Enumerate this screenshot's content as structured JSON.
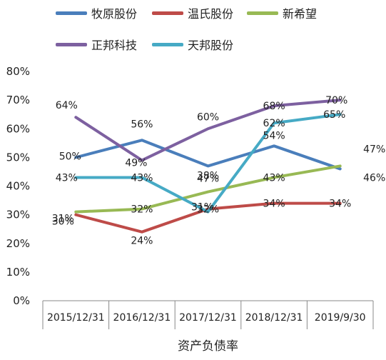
{
  "chart_data": {
    "type": "line",
    "xlabel": "资产负债率",
    "categories": [
      "2015/12/31",
      "2016/12/31",
      "2017/12/31",
      "2018/12/31",
      "2019/9/30"
    ],
    "ylim": [
      0,
      80
    ],
    "yticks": [
      "0%",
      "10%",
      "20%",
      "30%",
      "40%",
      "50%",
      "60%",
      "70%",
      "80%"
    ],
    "grid": false,
    "legend_position": "top",
    "series": [
      {
        "name": "牧原股份",
        "color": "#4a7ebb",
        "values": [
          50,
          56,
          47,
          54,
          46
        ],
        "labels": [
          "50%",
          "56%",
          "47%",
          "54%",
          "46%"
        ]
      },
      {
        "name": "温氏股份",
        "color": "#be4b48",
        "values": [
          30,
          24,
          32,
          34,
          34
        ],
        "labels": [
          "30%",
          "24%",
          "32%",
          "34%",
          "34%"
        ]
      },
      {
        "name": "新希望",
        "color": "#98b954",
        "values": [
          31,
          32,
          38,
          43,
          47
        ],
        "labels": [
          "31%",
          "32%",
          "38%",
          "43%",
          "47%"
        ]
      },
      {
        "name": "正邦科技",
        "color": "#7d60a0",
        "values": [
          64,
          49,
          60,
          68,
          70
        ],
        "labels": [
          "64%",
          "49%",
          "60%",
          "68%",
          "70%"
        ]
      },
      {
        "name": "天邦股份",
        "color": "#46aac5",
        "values": [
          43,
          43,
          31,
          62,
          65
        ],
        "labels": [
          "43%",
          "43%",
          "31%",
          "62%",
          "65%"
        ]
      }
    ]
  }
}
